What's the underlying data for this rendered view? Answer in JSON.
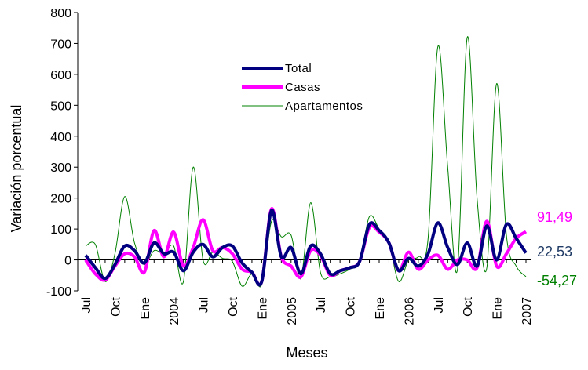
{
  "chart_data": {
    "type": "line",
    "title": "",
    "xlabel": "Meses",
    "ylabel": "Variación porcentual",
    "ylim": [
      -100,
      800
    ],
    "yticks": [
      -100,
      0,
      100,
      200,
      300,
      400,
      500,
      600,
      700,
      800
    ],
    "grid": false,
    "legend_position": "top-center",
    "x_tick_labels": [
      {
        "label": "Jul",
        "index": 0
      },
      {
        "label": "Oct",
        "index": 3
      },
      {
        "label": "Ene",
        "index": 6
      },
      {
        "label": "2004",
        "index": 9
      },
      {
        "label": "Jul",
        "index": 12
      },
      {
        "label": "Oct",
        "index": 15
      },
      {
        "label": "Ene",
        "index": 18
      },
      {
        "label": "2005",
        "index": 21
      },
      {
        "label": "Jul",
        "index": 24
      },
      {
        "label": "Oct",
        "index": 27
      },
      {
        "label": "Ene",
        "index": 30
      },
      {
        "label": "2006",
        "index": 33
      },
      {
        "label": "Jul",
        "index": 36
      },
      {
        "label": "Oct",
        "index": 39
      },
      {
        "label": "Ene",
        "index": 42
      },
      {
        "label": "2007",
        "index": 45
      }
    ],
    "n_points": 46,
    "series": [
      {
        "name": "Total",
        "color": "#000080",
        "values": [
          15,
          -25,
          -60,
          -15,
          45,
          30,
          -10,
          55,
          20,
          25,
          -35,
          25,
          50,
          10,
          40,
          45,
          -10,
          -40,
          -70,
          160,
          10,
          40,
          -45,
          45,
          20,
          -45,
          -35,
          -25,
          -5,
          115,
          95,
          55,
          -35,
          5,
          -20,
          20,
          120,
          40,
          -15,
          55,
          -20,
          110,
          0,
          115,
          70,
          22.53
        ]
      },
      {
        "name": "Casas",
        "color": "#ff00ff",
        "values": [
          0,
          -45,
          -65,
          -20,
          20,
          10,
          -40,
          95,
          10,
          90,
          -20,
          40,
          130,
          30,
          40,
          20,
          -30,
          -40,
          -70,
          165,
          10,
          -20,
          -55,
          30,
          15,
          -50,
          -35,
          -25,
          -5,
          105,
          90,
          55,
          -35,
          25,
          -30,
          0,
          15,
          -30,
          0,
          0,
          -25,
          125,
          -20,
          20,
          70,
          91.49
        ]
      },
      {
        "name": "Apartamentos",
        "color": "#008000",
        "values": [
          45,
          50,
          -70,
          20,
          205,
          55,
          -15,
          30,
          20,
          45,
          -70,
          300,
          0,
          25,
          5,
          -5,
          -85,
          -45,
          -80,
          125,
          75,
          80,
          -60,
          185,
          -40,
          -55,
          -45,
          -30,
          -5,
          140,
          100,
          55,
          -70,
          0,
          10,
          70,
          690,
          300,
          -30,
          720,
          200,
          -25,
          570,
          80,
          -20,
          -54.27
        ]
      }
    ],
    "end_labels": [
      {
        "series": "Casas",
        "text": "91,49",
        "color": "#ff00ff"
      },
      {
        "series": "Total",
        "text": "22,53",
        "color": "#1f3a64"
      },
      {
        "series": "Apartamentos",
        "text": "-54,27",
        "color": "#008000"
      }
    ]
  }
}
